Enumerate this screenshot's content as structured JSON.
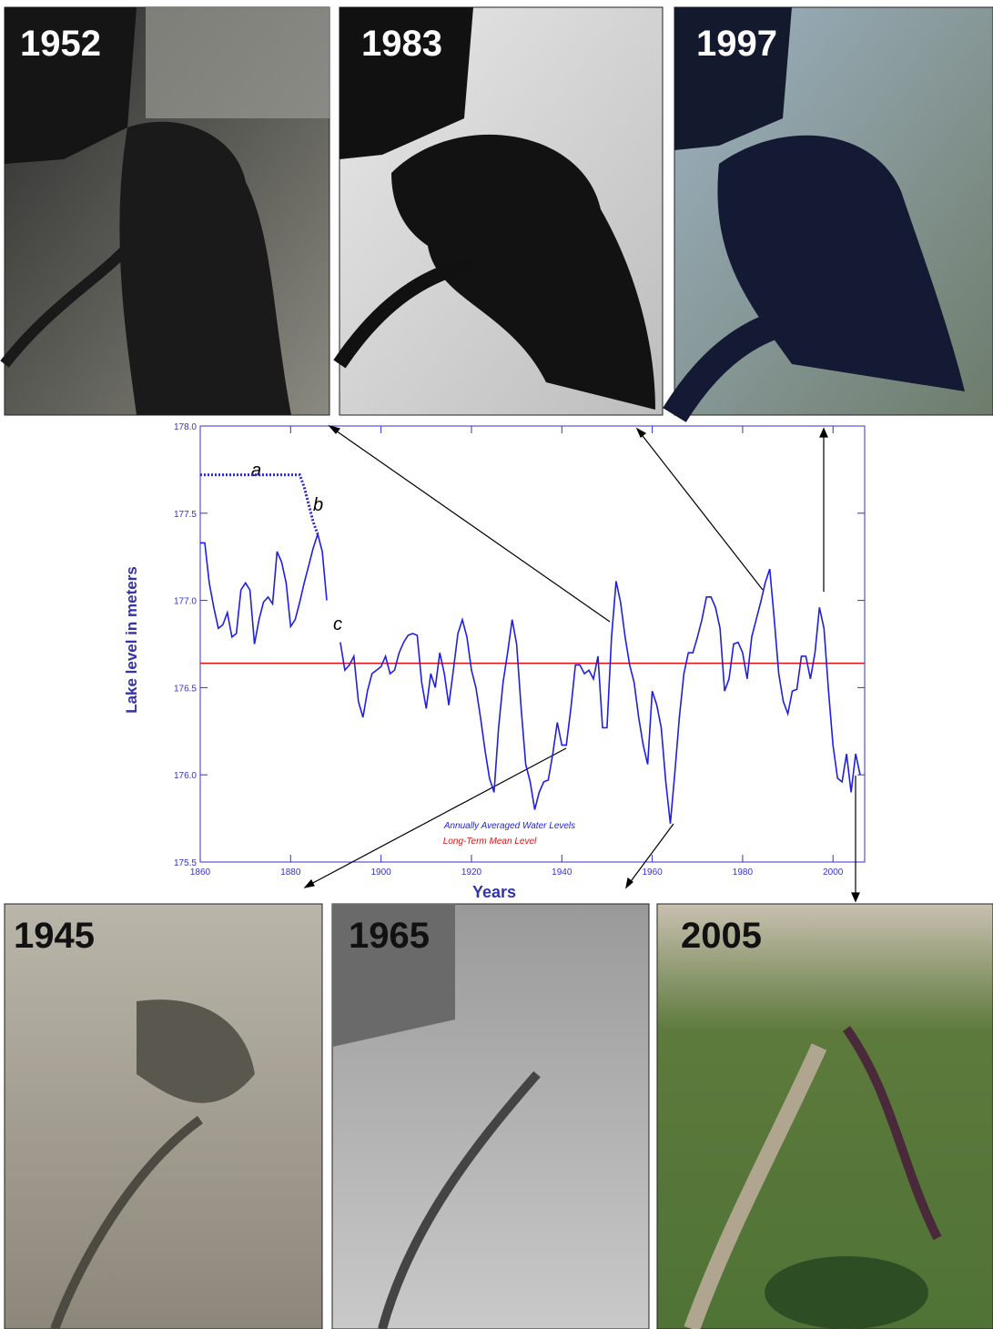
{
  "photos": [
    {
      "label": "1952"
    },
    {
      "label": "1983"
    },
    {
      "label": "1997"
    },
    {
      "label": "1945"
    },
    {
      "label": "1965"
    },
    {
      "label": "2005"
    }
  ],
  "chart_data": {
    "type": "line",
    "x_label": "Years",
    "y_label": "Lake level in meters",
    "xlim": [
      1860,
      2007
    ],
    "ylim": [
      175.5,
      178.0
    ],
    "xticks": [
      1860,
      1880,
      1900,
      1920,
      1940,
      1960,
      1980,
      2000
    ],
    "yticks": [
      175.5,
      {
        "value": 176,
        "label": "176.0"
      },
      176.5,
      {
        "value": 177,
        "label": "177.0"
      },
      177.5,
      {
        "value": 178,
        "label": "178.0"
      }
    ],
    "series": [
      {
        "name": "Annually Averaged Water Levels",
        "color": "#1f1fe0",
        "x": [
          1860,
          1861,
          1862,
          1863,
          1864,
          1865,
          1866,
          1867,
          1868,
          1869,
          1870,
          1871,
          1872,
          1873,
          1874,
          1875,
          1876,
          1877,
          1878,
          1879,
          1880,
          1881,
          1882,
          1883,
          1884,
          1885,
          1886,
          1887,
          1888,
          1889,
          1890,
          1891,
          1892,
          1893,
          1894,
          1895,
          1896,
          1897,
          1898,
          1899,
          1900,
          1901,
          1902,
          1903,
          1904,
          1905,
          1906,
          1907,
          1908,
          1909,
          1910,
          1911,
          1912,
          1913,
          1914,
          1915,
          1916,
          1917,
          1918,
          1919,
          1920,
          1921,
          1922,
          1923,
          1924,
          1925,
          1926,
          1927,
          1928,
          1929,
          1930,
          1931,
          1932,
          1933,
          1934,
          1935,
          1936,
          1937,
          1938,
          1939,
          1940,
          1941,
          1942,
          1943,
          1944,
          1945,
          1946,
          1947,
          1948,
          1949,
          1950,
          1951,
          1952,
          1953,
          1954,
          1955,
          1956,
          1957,
          1958,
          1959,
          1960,
          1961,
          1962,
          1963,
          1964,
          1965,
          1966,
          1967,
          1968,
          1969,
          1970,
          1971,
          1972,
          1973,
          1974,
          1975,
          1976,
          1977,
          1978,
          1979,
          1980,
          1981,
          1982,
          1983,
          1984,
          1985,
          1986,
          1987,
          1988,
          1989,
          1990,
          1991,
          1992,
          1993,
          1994,
          1995,
          1996,
          1997,
          1998,
          1999,
          2000,
          2001,
          2002,
          2003,
          2004,
          2005,
          2006
        ],
        "values": [
          177.33,
          177.33,
          177.1,
          176.96,
          176.84,
          176.86,
          176.93,
          176.79,
          176.81,
          177.06,
          177.1,
          177.06,
          176.75,
          176.89,
          176.99,
          177.02,
          176.98,
          177.28,
          177.22,
          177.1,
          176.85,
          176.89,
          176.99,
          177.1,
          177.2,
          177.3,
          177.38,
          177.28,
          177.0,
          null,
          null,
          176.76,
          176.6,
          176.63,
          176.68,
          176.42,
          176.33,
          176.48,
          176.58,
          176.6,
          176.62,
          176.68,
          176.58,
          176.6,
          176.7,
          176.76,
          176.8,
          176.81,
          176.8,
          176.53,
          176.38,
          176.58,
          176.5,
          176.7,
          176.58,
          176.4,
          176.6,
          176.81,
          176.89,
          176.79,
          176.6,
          176.5,
          176.33,
          176.14,
          175.98,
          175.9,
          176.27,
          176.53,
          176.7,
          176.89,
          176.75,
          176.38,
          176.06,
          175.96,
          175.8,
          175.9,
          175.96,
          175.97,
          176.12,
          176.3,
          176.17,
          176.17,
          176.38,
          176.63,
          176.63,
          176.58,
          176.6,
          176.55,
          176.68,
          176.27,
          176.27,
          176.79,
          177.11,
          176.99,
          176.79,
          176.63,
          176.53,
          176.33,
          176.17,
          176.06,
          176.48,
          176.4,
          176.27,
          175.96,
          175.72,
          176.01,
          176.33,
          176.58,
          176.7,
          176.7,
          176.79,
          176.89,
          177.02,
          177.02,
          176.96,
          176.84,
          176.48,
          176.55,
          176.75,
          176.76,
          176.7,
          176.55,
          176.79,
          176.89,
          176.99,
          177.1,
          177.18,
          176.89,
          176.58,
          176.42,
          176.35,
          176.48,
          176.49,
          176.68,
          176.68,
          176.55,
          176.7,
          176.96,
          176.84,
          176.48,
          176.17,
          175.98,
          175.96,
          176.12,
          175.9,
          176.12,
          176.0
        ]
      },
      {
        "color": "#2a2ad0",
        "dashed": true,
        "x": [
          1860,
          1882,
          1883,
          1884,
          1885,
          1886
        ],
        "values": [
          177.72,
          177.72,
          177.65,
          177.55,
          177.45,
          177.38
        ]
      }
    ],
    "reference_lines": [
      {
        "name": "Long-Term Mean Level",
        "value": 176.64,
        "color": "#e01010"
      }
    ],
    "annotations": [
      {
        "text": "a"
      },
      {
        "text": "b"
      },
      {
        "text": "c"
      }
    ]
  }
}
